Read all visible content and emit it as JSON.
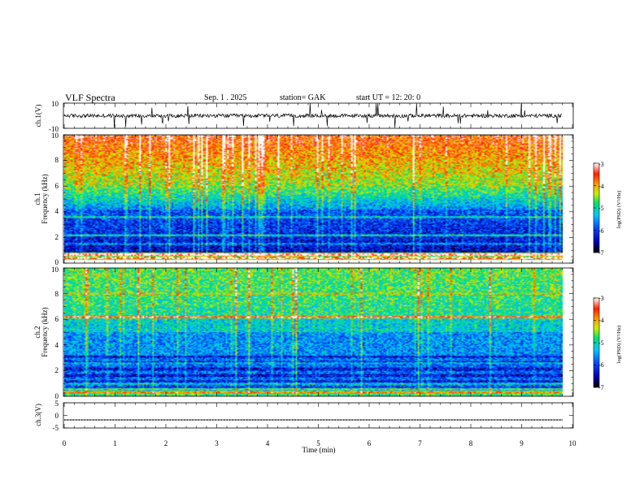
{
  "header": {
    "title": "VLF  Spectra",
    "date": "Sep. 1  . 2025",
    "station": "station= GAK",
    "start": "start  UT  =    12: 20: 0"
  },
  "chart_data": [
    {
      "name": "ch1-waveform",
      "type": "line",
      "ylabel": "ch.1(V)",
      "ylim": [
        -10,
        10
      ],
      "yticks": [
        "10",
        "-10"
      ],
      "baseline": 0,
      "noise_amplitude": 1.5,
      "trace_end_min": 9.8
    },
    {
      "name": "ch1-spectrogram",
      "type": "heatmap",
      "ylabel_line1": "ch.1",
      "ylabel_line2": "Frequency  (kHz)",
      "ylim": [
        0,
        10
      ],
      "yticks": [
        "0",
        "2",
        "4",
        "6",
        "8",
        "10"
      ],
      "colorbar": {
        "label": "log(PSD) (V²/Hz)",
        "range": [
          -7,
          -3
        ],
        "ticks": [
          "-3",
          "-4",
          "-5",
          "-6",
          "-7"
        ]
      },
      "gap_khz": [
        0.0,
        0.25
      ]
    },
    {
      "name": "ch2-spectrogram",
      "type": "heatmap",
      "ylabel_line1": "ch.2",
      "ylabel_line2": "Frequency  (kHz)",
      "ylim": [
        0,
        10
      ],
      "yticks": [
        "0",
        "2",
        "4",
        "6",
        "8",
        "10"
      ],
      "colorbar": {
        "label": "log(PSD) (V²/Hz)",
        "range": [
          -7,
          -3
        ],
        "ticks": [
          "-3",
          "-4",
          "-5",
          "-6",
          "-7"
        ]
      },
      "strong_line_khz": 6.2
    },
    {
      "name": "ch3-waveform",
      "type": "line",
      "ylabel": "ch.3(V)",
      "ylim": [
        -5,
        5
      ],
      "yticks": [
        "5",
        "0",
        "-5"
      ],
      "baseline": -1.8,
      "trace_end_min": 9.8
    }
  ],
  "xaxis": {
    "label": "Time  (min)",
    "xlim": [
      0,
      10
    ],
    "ticks": [
      "0",
      "1",
      "2",
      "3",
      "4",
      "5",
      "6",
      "7",
      "8",
      "9",
      "10"
    ]
  },
  "colors": {
    "colormap": [
      "#000000",
      "#0000b0",
      "#0050ff",
      "#00c8ff",
      "#00e070",
      "#c8f000",
      "#ffa000",
      "#ff2000",
      "#ffffff"
    ]
  }
}
